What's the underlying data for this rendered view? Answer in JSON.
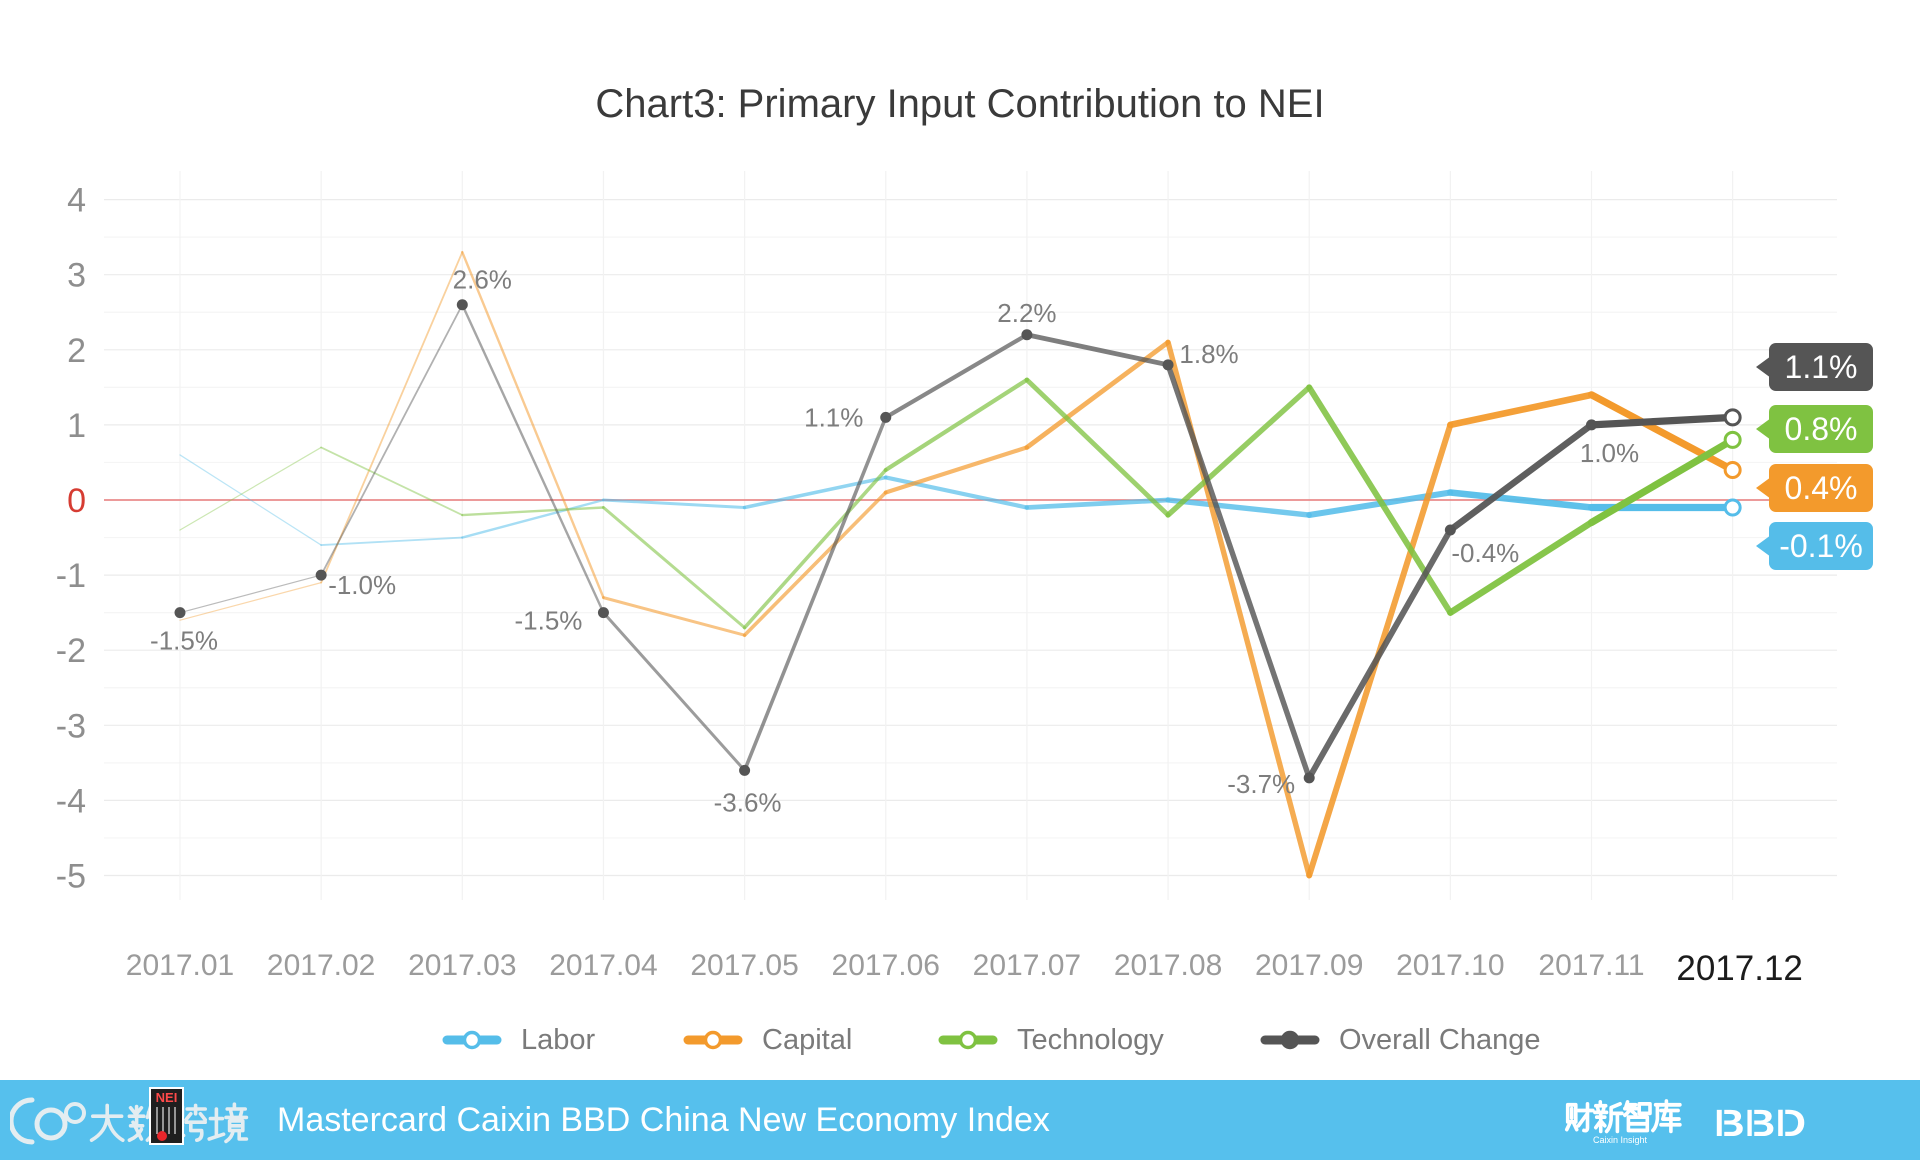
{
  "chart_data": {
    "type": "line",
    "title": "Chart3: Primary Input Contribution to NEI",
    "categories": [
      "2017.01",
      "2017.02",
      "2017.03",
      "2017.04",
      "2017.05",
      "2017.06",
      "2017.07",
      "2017.08",
      "2017.09",
      "2017.10",
      "2017.11",
      "2017.12"
    ],
    "yticks": [
      4,
      3,
      2,
      1,
      0,
      -1,
      -2,
      -3,
      -4,
      -5
    ],
    "ylim": [
      -5,
      4
    ],
    "grid": true,
    "legend": "bottom",
    "zero_line_color": "#e87a7a",
    "zero_label_color": "#d63c32",
    "series": [
      {
        "name": "Labor",
        "color": "#55bde9",
        "values": [
          0.6,
          -0.6,
          -0.5,
          0.0,
          -0.1,
          0.3,
          -0.1,
          0.0,
          -0.2,
          0.1,
          -0.1,
          -0.1
        ],
        "end_label": "-0.1%"
      },
      {
        "name": "Capital",
        "color": "#f39a2c",
        "values": [
          -1.6,
          -1.1,
          3.3,
          -1.3,
          -1.8,
          0.1,
          0.7,
          2.1,
          -5.0,
          1.0,
          1.4,
          0.4
        ],
        "end_label": "0.4%"
      },
      {
        "name": "Technology",
        "color": "#7fc241",
        "values": [
          -0.4,
          0.7,
          -0.2,
          -0.1,
          -1.7,
          0.4,
          1.6,
          -0.2,
          1.5,
          -1.5,
          -0.3,
          0.8
        ],
        "end_label": "0.8%"
      },
      {
        "name": "Overall Change",
        "color": "#555555",
        "values": [
          -1.5,
          -1.0,
          2.6,
          -1.5,
          -3.6,
          1.1,
          2.2,
          1.8,
          -3.7,
          -0.4,
          1.0,
          1.1
        ],
        "end_label": "1.1%",
        "point_labels": [
          "-1.5%",
          "-1.0%",
          "2.6%",
          "-1.5%",
          "-3.6%",
          "1.1%",
          "2.2%",
          "1.8%",
          "-3.7%",
          "-0.4%",
          "1.0%"
        ]
      }
    ]
  },
  "footer": {
    "title": "Mastercard Caixin BBD China New Economy Index",
    "color": "#56c0ed",
    "logos": {
      "left_mark": "大数跨境",
      "left_badge": "NEI",
      "right_cn": "财新智库",
      "right_en": "Caixin Insight",
      "right_bbd": "BBD"
    }
  }
}
